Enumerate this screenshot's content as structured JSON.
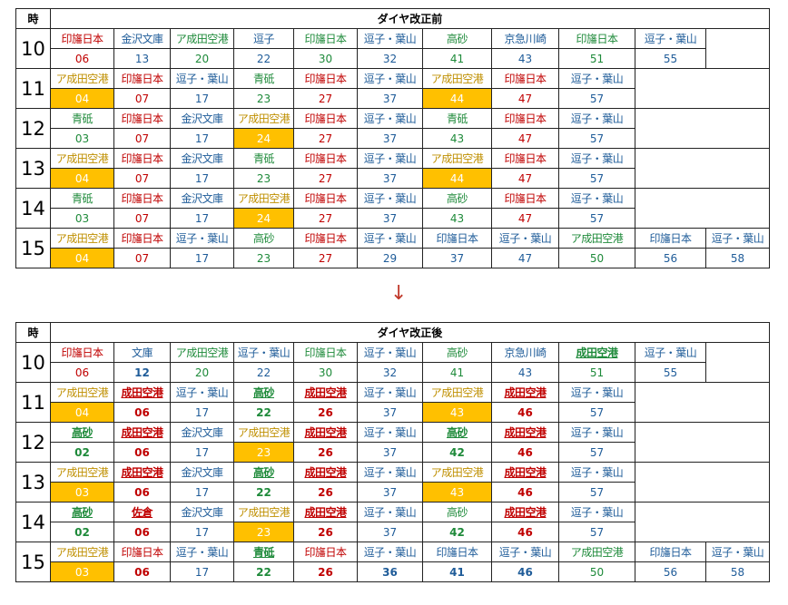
{
  "colors": {
    "red": "#c00000",
    "blue": "#1f5c99",
    "green": "#1e8a3a",
    "gold": "#bf8f00",
    "highlight": "#ffc000"
  },
  "arrow": "↓",
  "before": {
    "hour_header": "時",
    "title": "ダイヤ改正前",
    "rows": [
      {
        "hour": "10",
        "trains": [
          {
            "d": "印旛日本",
            "m": "06",
            "c": "red"
          },
          {
            "d": "金沢文庫",
            "m": "13",
            "c": "blue"
          },
          {
            "d": "ア成田空港",
            "m": "20",
            "c": "green"
          },
          {
            "d": "逗子",
            "m": "22",
            "c": "blue"
          },
          {
            "d": "印旛日本",
            "m": "30",
            "c": "green"
          },
          {
            "d": "逗子・葉山",
            "m": "32",
            "c": "blue"
          },
          {
            "d": "高砂",
            "m": "41",
            "c": "green"
          },
          {
            "d": "京急川崎",
            "m": "43",
            "c": "blue"
          },
          {
            "d": "印旛日本",
            "m": "51",
            "c": "green"
          },
          {
            "d": "逗子・葉山",
            "m": "55",
            "c": "blue"
          }
        ]
      },
      {
        "hour": "11",
        "trains": [
          {
            "d": "ア成田空港",
            "m": "04",
            "c": "gold",
            "hl": true
          },
          {
            "d": "印旛日本",
            "m": "07",
            "c": "red"
          },
          {
            "d": "逗子・葉山",
            "m": "17",
            "c": "blue"
          },
          {
            "d": "青砥",
            "m": "23",
            "c": "green"
          },
          {
            "d": "印旛日本",
            "m": "27",
            "c": "red"
          },
          {
            "d": "逗子・葉山",
            "m": "37",
            "c": "blue"
          },
          {
            "d": "ア成田空港",
            "m": "44",
            "c": "gold",
            "hl": true
          },
          {
            "d": "印旛日本",
            "m": "47",
            "c": "red"
          },
          {
            "d": "逗子・葉山",
            "m": "57",
            "c": "blue"
          }
        ]
      },
      {
        "hour": "12",
        "trains": [
          {
            "d": "青砥",
            "m": "03",
            "c": "green"
          },
          {
            "d": "印旛日本",
            "m": "07",
            "c": "red"
          },
          {
            "d": "金沢文庫",
            "m": "17",
            "c": "blue"
          },
          {
            "d": "ア成田空港",
            "m": "24",
            "c": "gold",
            "hl": true
          },
          {
            "d": "印旛日本",
            "m": "27",
            "c": "red"
          },
          {
            "d": "逗子・葉山",
            "m": "37",
            "c": "blue"
          },
          {
            "d": "青砥",
            "m": "43",
            "c": "green"
          },
          {
            "d": "印旛日本",
            "m": "47",
            "c": "red"
          },
          {
            "d": "逗子・葉山",
            "m": "57",
            "c": "blue"
          }
        ]
      },
      {
        "hour": "13",
        "trains": [
          {
            "d": "ア成田空港",
            "m": "04",
            "c": "gold",
            "hl": true
          },
          {
            "d": "印旛日本",
            "m": "07",
            "c": "red"
          },
          {
            "d": "金沢文庫",
            "m": "17",
            "c": "blue"
          },
          {
            "d": "青砥",
            "m": "23",
            "c": "green"
          },
          {
            "d": "印旛日本",
            "m": "27",
            "c": "red"
          },
          {
            "d": "逗子・葉山",
            "m": "37",
            "c": "blue"
          },
          {
            "d": "ア成田空港",
            "m": "44",
            "c": "gold",
            "hl": true
          },
          {
            "d": "印旛日本",
            "m": "47",
            "c": "red"
          },
          {
            "d": "逗子・葉山",
            "m": "57",
            "c": "blue"
          }
        ]
      },
      {
        "hour": "14",
        "trains": [
          {
            "d": "青砥",
            "m": "03",
            "c": "green"
          },
          {
            "d": "印旛日本",
            "m": "07",
            "c": "red"
          },
          {
            "d": "金沢文庫",
            "m": "17",
            "c": "blue"
          },
          {
            "d": "ア成田空港",
            "m": "24",
            "c": "gold",
            "hl": true
          },
          {
            "d": "印旛日本",
            "m": "27",
            "c": "red"
          },
          {
            "d": "逗子・葉山",
            "m": "37",
            "c": "blue"
          },
          {
            "d": "高砂",
            "m": "43",
            "c": "green"
          },
          {
            "d": "印旛日本",
            "m": "47",
            "c": "red"
          },
          {
            "d": "逗子・葉山",
            "m": "57",
            "c": "blue"
          }
        ]
      },
      {
        "hour": "15",
        "trains": [
          {
            "d": "ア成田空港",
            "m": "04",
            "c": "gold",
            "hl": true
          },
          {
            "d": "印旛日本",
            "m": "07",
            "c": "red"
          },
          {
            "d": "逗子・葉山",
            "m": "17",
            "c": "blue"
          },
          {
            "d": "高砂",
            "m": "23",
            "c": "green"
          },
          {
            "d": "印旛日本",
            "m": "27",
            "c": "red"
          },
          {
            "d": "逗子・葉山",
            "m": "29",
            "c": "blue"
          },
          {
            "d": "印旛日本",
            "m": "37",
            "c": "blue"
          },
          {
            "d": "逗子・葉山",
            "m": "47",
            "c": "blue"
          },
          {
            "d": "ア成田空港",
            "m": "50",
            "c": "green"
          },
          {
            "d": "印旛日本",
            "m": "56",
            "c": "blue"
          },
          {
            "d": "逗子・葉山",
            "m": "58",
            "c": "blue"
          }
        ]
      }
    ]
  },
  "after": {
    "hour_header": "時",
    "title": "ダイヤ改正後",
    "rows": [
      {
        "hour": "10",
        "trains": [
          {
            "d": "印旛日本",
            "m": "06",
            "c": "red"
          },
          {
            "d": "文庫",
            "m": "12",
            "c": "blue",
            "bm": true
          },
          {
            "d": "ア成田空港",
            "m": "20",
            "c": "green"
          },
          {
            "d": "逗子・葉山",
            "m": "22",
            "c": "blue"
          },
          {
            "d": "印旛日本",
            "m": "30",
            "c": "green"
          },
          {
            "d": "逗子・葉山",
            "m": "32",
            "c": "blue"
          },
          {
            "d": "高砂",
            "m": "41",
            "c": "green"
          },
          {
            "d": "京急川崎",
            "m": "43",
            "c": "blue"
          },
          {
            "d": "成田空港",
            "m": "51",
            "c": "green",
            "bd": true
          },
          {
            "d": "逗子・葉山",
            "m": "55",
            "c": "blue"
          }
        ]
      },
      {
        "hour": "11",
        "trains": [
          {
            "d": "ア成田空港",
            "m": "04",
            "c": "gold",
            "hl": true
          },
          {
            "d": "成田空港",
            "m": "06",
            "c": "red",
            "bd": true,
            "bm": true
          },
          {
            "d": "逗子・葉山",
            "m": "17",
            "c": "blue"
          },
          {
            "d": "高砂",
            "m": "22",
            "c": "green",
            "bd": true,
            "bm": true
          },
          {
            "d": "成田空港",
            "m": "26",
            "c": "red",
            "bd": true,
            "bm": true
          },
          {
            "d": "逗子・葉山",
            "m": "37",
            "c": "blue"
          },
          {
            "d": "ア成田空港",
            "m": "43",
            "c": "gold",
            "hl": true
          },
          {
            "d": "成田空港",
            "m": "46",
            "c": "red",
            "bd": true,
            "bm": true
          },
          {
            "d": "逗子・葉山",
            "m": "57",
            "c": "blue"
          }
        ]
      },
      {
        "hour": "12",
        "trains": [
          {
            "d": "高砂",
            "m": "02",
            "c": "green",
            "bd": true,
            "bm": true
          },
          {
            "d": "成田空港",
            "m": "06",
            "c": "red",
            "bd": true,
            "bm": true
          },
          {
            "d": "金沢文庫",
            "m": "17",
            "c": "blue"
          },
          {
            "d": "ア成田空港",
            "m": "23",
            "c": "gold",
            "hl": true
          },
          {
            "d": "成田空港",
            "m": "26",
            "c": "red",
            "bd": true,
            "bm": true
          },
          {
            "d": "逗子・葉山",
            "m": "37",
            "c": "blue"
          },
          {
            "d": "高砂",
            "m": "42",
            "c": "green",
            "bd": true,
            "bm": true
          },
          {
            "d": "成田空港",
            "m": "46",
            "c": "red",
            "bd": true,
            "bm": true
          },
          {
            "d": "逗子・葉山",
            "m": "57",
            "c": "blue"
          }
        ]
      },
      {
        "hour": "13",
        "trains": [
          {
            "d": "ア成田空港",
            "m": "03",
            "c": "gold",
            "hl": true
          },
          {
            "d": "成田空港",
            "m": "06",
            "c": "red",
            "bd": true,
            "bm": true
          },
          {
            "d": "金沢文庫",
            "m": "17",
            "c": "blue"
          },
          {
            "d": "高砂",
            "m": "22",
            "c": "green",
            "bd": true,
            "bm": true
          },
          {
            "d": "成田空港",
            "m": "26",
            "c": "red",
            "bd": true,
            "bm": true
          },
          {
            "d": "逗子・葉山",
            "m": "37",
            "c": "blue"
          },
          {
            "d": "ア成田空港",
            "m": "43",
            "c": "gold",
            "hl": true
          },
          {
            "d": "成田空港",
            "m": "46",
            "c": "red",
            "bd": true,
            "bm": true
          },
          {
            "d": "逗子・葉山",
            "m": "57",
            "c": "blue"
          }
        ]
      },
      {
        "hour": "14",
        "trains": [
          {
            "d": "高砂",
            "m": "02",
            "c": "green",
            "bd": true,
            "bm": true
          },
          {
            "d": "佐倉",
            "m": "06",
            "c": "red",
            "bd": true,
            "bm": true
          },
          {
            "d": "金沢文庫",
            "m": "17",
            "c": "blue"
          },
          {
            "d": "ア成田空港",
            "m": "23",
            "c": "gold",
            "hl": true
          },
          {
            "d": "成田空港",
            "m": "26",
            "c": "red",
            "bd": true,
            "bm": true
          },
          {
            "d": "逗子・葉山",
            "m": "37",
            "c": "blue"
          },
          {
            "d": "高砂",
            "m": "42",
            "c": "green",
            "bm": true
          },
          {
            "d": "成田空港",
            "m": "46",
            "c": "red",
            "bd": true,
            "bm": true
          },
          {
            "d": "逗子・葉山",
            "m": "57",
            "c": "blue"
          }
        ]
      },
      {
        "hour": "15",
        "trains": [
          {
            "d": "ア成田空港",
            "m": "03",
            "c": "gold",
            "hl": true
          },
          {
            "d": "印旛日本",
            "m": "06",
            "c": "red",
            "bm": true
          },
          {
            "d": "逗子・葉山",
            "m": "17",
            "c": "blue"
          },
          {
            "d": "青砥",
            "m": "22",
            "c": "green",
            "bd": true,
            "bm": true
          },
          {
            "d": "印旛日本",
            "m": "26",
            "c": "red",
            "bm": true
          },
          {
            "d": "逗子・葉山",
            "m": "36",
            "c": "blue",
            "bm": true
          },
          {
            "d": "印旛日本",
            "m": "41",
            "c": "blue",
            "bm": true
          },
          {
            "d": "逗子・葉山",
            "m": "46",
            "c": "blue",
            "bm": true
          },
          {
            "d": "ア成田空港",
            "m": "50",
            "c": "green"
          },
          {
            "d": "印旛日本",
            "m": "56",
            "c": "blue"
          },
          {
            "d": "逗子・葉山",
            "m": "58",
            "c": "blue"
          }
        ]
      }
    ]
  }
}
